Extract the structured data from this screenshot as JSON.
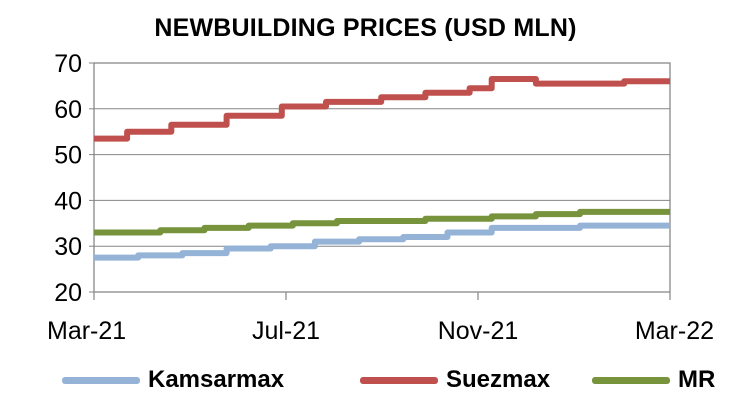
{
  "chart_data": {
    "type": "line",
    "title": "NEWBUILDING PRICES (USD MLN)",
    "xlabel": "",
    "ylabel": "",
    "ylim": [
      20,
      70
    ],
    "yticks": [
      20,
      30,
      40,
      50,
      60,
      70
    ],
    "x_range": [
      "2021-03-01",
      "2022-03-01"
    ],
    "xtick_labels": [
      "Mar-21",
      "Jul-21",
      "Nov-21",
      "Mar-22"
    ],
    "grid": "horizontal",
    "legend_position": "bottom",
    "series": [
      {
        "name": "Kamsarmax",
        "color": "#95b3d7",
        "points": [
          [
            "2021-03-01",
            27.5
          ],
          [
            "2021-03-15",
            27.5
          ],
          [
            "2021-03-29",
            28.0
          ],
          [
            "2021-04-26",
            28.5
          ],
          [
            "2021-05-24",
            29.5
          ],
          [
            "2021-06-21",
            30.0
          ],
          [
            "2021-07-19",
            31.0
          ],
          [
            "2021-08-16",
            31.5
          ],
          [
            "2021-09-13",
            32.0
          ],
          [
            "2021-10-11",
            33.0
          ],
          [
            "2021-11-08",
            34.0
          ],
          [
            "2021-12-06",
            34.0
          ],
          [
            "2022-01-03",
            34.5
          ],
          [
            "2022-01-31",
            34.5
          ],
          [
            "2022-03-01",
            34.5
          ]
        ]
      },
      {
        "name": "Suezmax",
        "color": "#c0504d",
        "points": [
          [
            "2021-03-01",
            53.5
          ],
          [
            "2021-03-15",
            53.5
          ],
          [
            "2021-03-22",
            55.0
          ],
          [
            "2021-04-19",
            56.5
          ],
          [
            "2021-05-24",
            58.5
          ],
          [
            "2021-06-28",
            60.5
          ],
          [
            "2021-07-26",
            61.5
          ],
          [
            "2021-08-30",
            62.5
          ],
          [
            "2021-09-27",
            63.5
          ],
          [
            "2021-10-25",
            64.5
          ],
          [
            "2021-11-08",
            66.5
          ],
          [
            "2021-12-06",
            65.5
          ],
          [
            "2022-01-03",
            65.5
          ],
          [
            "2022-01-31",
            66.0
          ],
          [
            "2022-03-01",
            66.0
          ]
        ]
      },
      {
        "name": "MR",
        "color": "#77933c",
        "points": [
          [
            "2021-03-01",
            33.0
          ],
          [
            "2021-03-22",
            33.0
          ],
          [
            "2021-04-12",
            33.5
          ],
          [
            "2021-05-10",
            34.0
          ],
          [
            "2021-06-07",
            34.5
          ],
          [
            "2021-07-05",
            35.0
          ],
          [
            "2021-08-02",
            35.5
          ],
          [
            "2021-08-30",
            35.5
          ],
          [
            "2021-09-27",
            36.0
          ],
          [
            "2021-11-08",
            36.5
          ],
          [
            "2021-12-06",
            37.0
          ],
          [
            "2022-01-03",
            37.5
          ],
          [
            "2022-03-01",
            37.5
          ]
        ]
      }
    ]
  }
}
